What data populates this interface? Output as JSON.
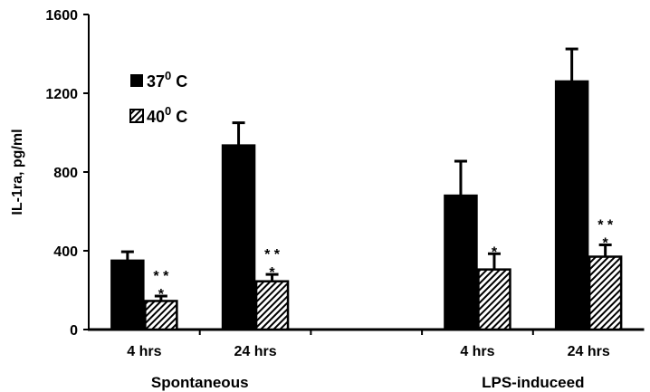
{
  "chart_data": {
    "type": "bar",
    "title": "",
    "xlabel": "",
    "ylabel": "IL-1ra, pg/ml",
    "ylim": [
      0,
      1600
    ],
    "yticks": [
      "0",
      "400",
      "800",
      "1200",
      "1600"
    ],
    "grid": false,
    "legend_position": "top-left",
    "categories": [
      "4 hrs",
      "24 hrs",
      "4 hrs",
      "24 hrs"
    ],
    "groups": [
      {
        "label": "Spontaneous",
        "categories": [
          0,
          1
        ]
      },
      {
        "label": "LPS-induceed",
        "categories": [
          2,
          3
        ]
      }
    ],
    "series": [
      {
        "name": "37",
        "unit_sup": "0",
        "unit": " C",
        "color": "#000000",
        "pattern": "solid",
        "values": [
          350,
          935,
          680,
          1260
        ],
        "errors": [
          45,
          115,
          175,
          165
        ]
      },
      {
        "name": "40",
        "unit_sup": "0",
        "unit": " C",
        "color": "#ffffff",
        "pattern": "hatched",
        "values": [
          145,
          245,
          305,
          370
        ],
        "errors": [
          25,
          35,
          80,
          60
        ]
      }
    ],
    "annotations": [
      {
        "category": 0,
        "series": 1,
        "top": "* *",
        "bottom": "*"
      },
      {
        "category": 1,
        "series": 1,
        "top": "* *",
        "bottom": "*"
      },
      {
        "category": 2,
        "series": 1,
        "top": "",
        "bottom": "*"
      },
      {
        "category": 3,
        "series": 1,
        "top": "* *",
        "bottom": "*"
      }
    ]
  }
}
